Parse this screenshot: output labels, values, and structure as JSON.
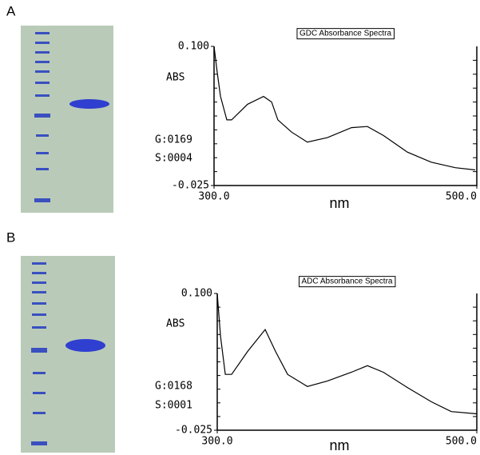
{
  "chart_data": [
    {
      "type": "line",
      "panel": "A",
      "title": "GDC Absorbance Spectra",
      "y_label": "ABS",
      "x_label": "nm",
      "annotations": [
        "G:0169",
        "S:0004"
      ],
      "color": "#000000",
      "x": [
        300,
        302.4,
        304.9,
        309.7,
        313.4,
        325.5,
        337.7,
        343.8,
        348.6,
        359,
        371,
        386.3,
        404.6,
        416.7,
        428.9,
        447.1,
        465.3,
        483.6,
        498.8
      ],
      "values": [
        0.1,
        0.077,
        0.055,
        0.034,
        0.034,
        0.048,
        0.055,
        0.05,
        0.034,
        0.023,
        0.014,
        0.018,
        0.027,
        0.028,
        0.02,
        0.005,
        -0.004,
        -0.009,
        -0.011
      ],
      "xlim": [
        300,
        500
      ],
      "ylim": [
        -0.025,
        0.1
      ],
      "xticks": [
        {
          "value": 300,
          "label": "300.0"
        },
        {
          "value": 500,
          "label": "500.0"
        }
      ],
      "yticks": [
        {
          "value": 0.1,
          "label": "0.100"
        },
        -0.025
      ]
    },
    {
      "type": "line",
      "panel": "B",
      "title": "ADC Absorbance Spectra",
      "y_label": "ABS",
      "x_label": "nm",
      "annotations": [
        "G:0168",
        "S:0001"
      ],
      "color": "#000000",
      "x": [
        300,
        302.5,
        306.2,
        311.1,
        323.4,
        336.9,
        344.9,
        354.2,
        369.5,
        384.9,
        403.4,
        415.7,
        428,
        446.5,
        464.9,
        480.3,
        500
      ],
      "values": [
        0.1,
        0.061,
        0.026,
        0.026,
        0.047,
        0.067,
        0.047,
        0.026,
        0.015,
        0.02,
        0.028,
        0.034,
        0.028,
        0.014,
        0.001,
        -0.008,
        -0.01
      ],
      "xlim": [
        300,
        500
      ],
      "ylim": [
        -0.025,
        0.1
      ],
      "xticks": [
        {
          "value": 300,
          "label": "300.0"
        },
        {
          "value": 500,
          "label": "500.0"
        }
      ],
      "yticks": [
        {
          "value": 0.1,
          "label": "0.100"
        },
        -0.025
      ]
    }
  ]
}
